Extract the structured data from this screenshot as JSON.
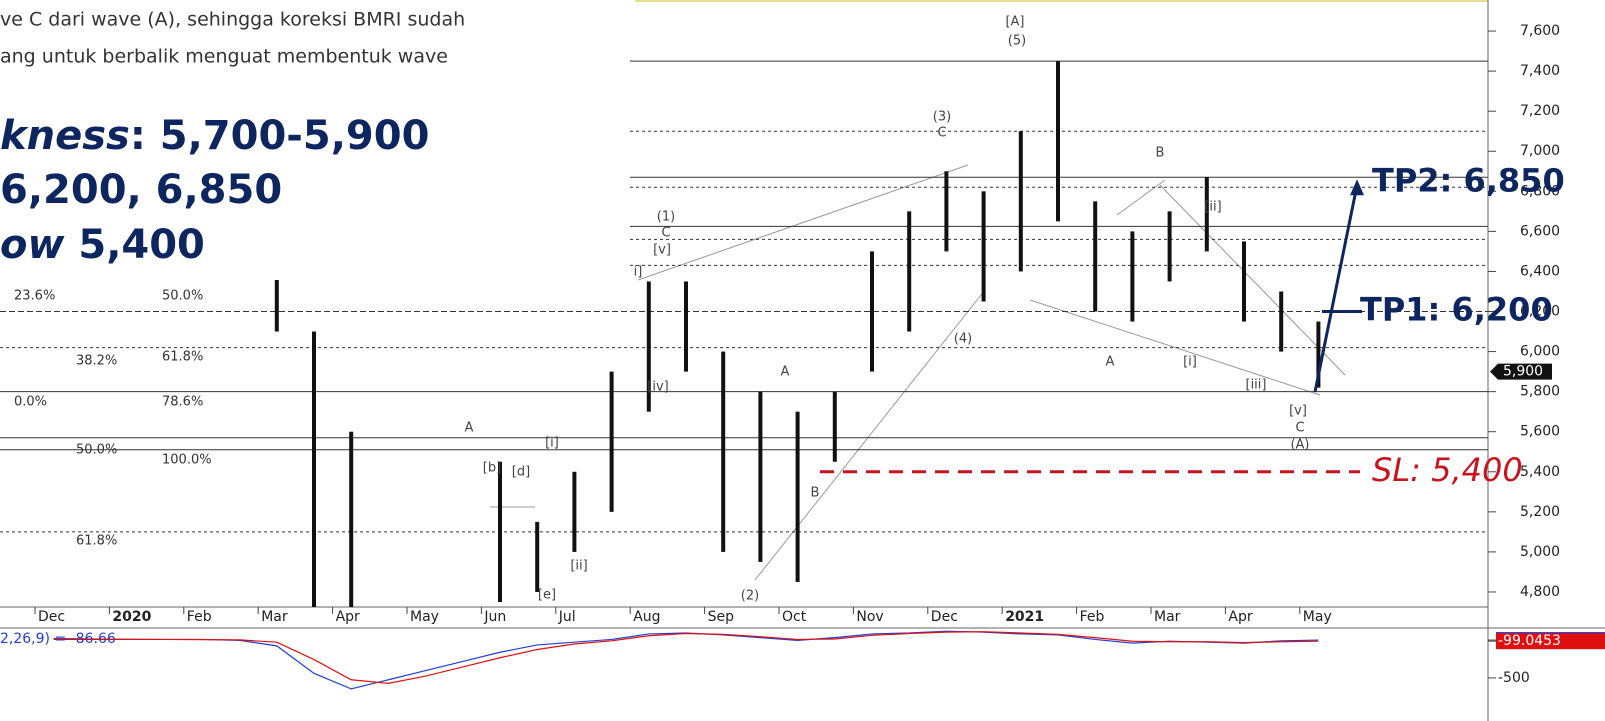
{
  "chart_data": {
    "type": "range-bar",
    "categories": [
      "Dec",
      null,
      "2020",
      null,
      "Feb",
      null,
      "Mar",
      null,
      "Apr",
      null,
      "May",
      null,
      "Jun",
      null,
      "Jul",
      null,
      "Aug",
      null,
      "Sep",
      null,
      "Oct",
      null,
      "Nov",
      null,
      "Dec",
      null,
      "2021",
      null,
      "Feb",
      null,
      "Mar",
      null,
      "Apr",
      null,
      "May",
      null,
      null,
      null,
      null
    ],
    "high": [
      null,
      null,
      null,
      null,
      null,
      null,
      6400,
      6100,
      5600,
      null,
      null,
      null,
      5450,
      5150,
      5400,
      5900,
      6350,
      6350,
      6000,
      5800,
      5700,
      5800,
      6500,
      6700,
      6900,
      6800,
      7100,
      7450,
      6750,
      6600,
      6700,
      6870,
      6550,
      6300,
      6150,
      null,
      null,
      null,
      null
    ],
    "low": [
      null,
      null,
      null,
      null,
      null,
      null,
      6100,
      4700,
      4700,
      null,
      null,
      null,
      4750,
      4800,
      5000,
      5200,
      5700,
      5900,
      5000,
      4950,
      4850,
      5450,
      5900,
      6100,
      6500,
      6250,
      6400,
      6650,
      6200,
      6150,
      6350,
      6500,
      6150,
      6000,
      5820,
      null,
      null,
      null,
      null
    ],
    "color": "#111111",
    "ylim": [
      4725,
      7755
    ],
    "yticks": [
      {
        "value": 4800,
        "label": "4,800"
      },
      {
        "value": 5000,
        "label": "5,000"
      },
      {
        "value": 5200,
        "label": "5,200"
      },
      {
        "value": 5400,
        "label": "5,400"
      },
      {
        "value": 5600,
        "label": "5,600"
      },
      {
        "value": 5800,
        "label": "5,800"
      },
      {
        "value": 6000,
        "label": "6,000"
      },
      {
        "value": 6200,
        "label": "6,200"
      },
      {
        "value": 6400,
        "label": "6,400"
      },
      {
        "value": 6600,
        "label": "6,600"
      },
      {
        "value": 6800,
        "label": "6,800"
      },
      {
        "value": 7000,
        "label": "7,000"
      },
      {
        "value": 7200,
        "label": "7,200"
      },
      {
        "value": 7400,
        "label": "7,400"
      },
      {
        "value": 7600,
        "label": "7,600"
      }
    ],
    "last_price": {
      "value": 5900,
      "label": "5,900"
    },
    "levels": [
      {
        "value": 7450,
        "style": "solid"
      },
      {
        "value": 7100,
        "style": "dotted"
      },
      {
        "value": 6870,
        "style": "solid"
      },
      {
        "value": 6820,
        "style": "dotted"
      },
      {
        "value": 6625,
        "style": "solid"
      },
      {
        "value": 6560,
        "style": "dotted"
      },
      {
        "value": 6430,
        "style": "dotted"
      },
      {
        "value": 6200,
        "style": "dashed"
      },
      {
        "value": 6020,
        "style": "dotted"
      },
      {
        "value": 5800,
        "style": "solid"
      },
      {
        "value": 5570,
        "style": "solid"
      },
      {
        "value": 5510,
        "style": "solid"
      },
      {
        "value": 5100,
        "style": "dotted"
      }
    ],
    "targets": [
      {
        "label": "TP2: 6,850",
        "value": 6850
      },
      {
        "label": "TP1: 6,200",
        "value": 6200
      }
    ],
    "stop_loss": {
      "label": "SL: 5,400",
      "value": 5400
    },
    "annotations": [
      "[A]",
      "(5)",
      "(3)",
      "C",
      "B",
      "[ii]",
      "(1)",
      "C",
      "[v]",
      "i]",
      "(4)",
      "A",
      "[i]",
      "[iii]",
      "[iv]",
      "A",
      "[v]",
      "C",
      "(A)",
      "A",
      "[i]",
      "[b]",
      "[d]",
      "B",
      "[ii]",
      "[e]",
      "(2)"
    ],
    "fib_labels": [
      "23.6%",
      "50.0%",
      "38.2%",
      "61.8%",
      "0.0%",
      "78.6%",
      "50.0%",
      "100.0%",
      "61.8%"
    ],
    "macd": {
      "label": "2,26,9) = -86.66",
      "ylim": [
        -785,
        45
      ],
      "yticks": [
        {
          "value": -86.6606,
          "label": "-86.6606"
        },
        {
          "value": -99.0453,
          "label": "-99.0453"
        },
        -500
      ],
      "series": [
        {
          "color": "#1f3fd6",
          "values": [
            -80,
            -80,
            -80,
            -80,
            -80,
            -90,
            -150,
            -450,
            -620,
            -520,
            -420,
            -320,
            -220,
            -140,
            -110,
            -80,
            -20,
            -10,
            -30,
            -60,
            -90,
            -60,
            -20,
            -10,
            10,
            0,
            -20,
            -30,
            -80,
            -120,
            -100,
            -110,
            -120,
            -95,
            -86.66,
            null,
            null,
            null,
            null
          ]
        },
        {
          "color": "#e01010",
          "values": [
            -70,
            -75,
            -78,
            -80,
            -82,
            -85,
            -110,
            -300,
            -520,
            -560,
            -480,
            -380,
            -280,
            -190,
            -130,
            -95,
            -40,
            -15,
            -25,
            -50,
            -80,
            -75,
            -35,
            -15,
            0,
            5,
            -10,
            -25,
            -60,
            -100,
            -105,
            -105,
            -115,
            -105,
            -99.05,
            null,
            null,
            null,
            null
          ]
        }
      ]
    },
    "text_block": {
      "line1": "ve C dari wave (A), sehingga koreksi BMRI sudah",
      "line2": "ang untuk berbalik menguat membentuk wave",
      "line3_italic": "kness",
      "line3": ": 5,700-5,900",
      "line4": " 6,200, 6,850",
      "line5_italic": "ow",
      "line5": " 5,400"
    }
  }
}
